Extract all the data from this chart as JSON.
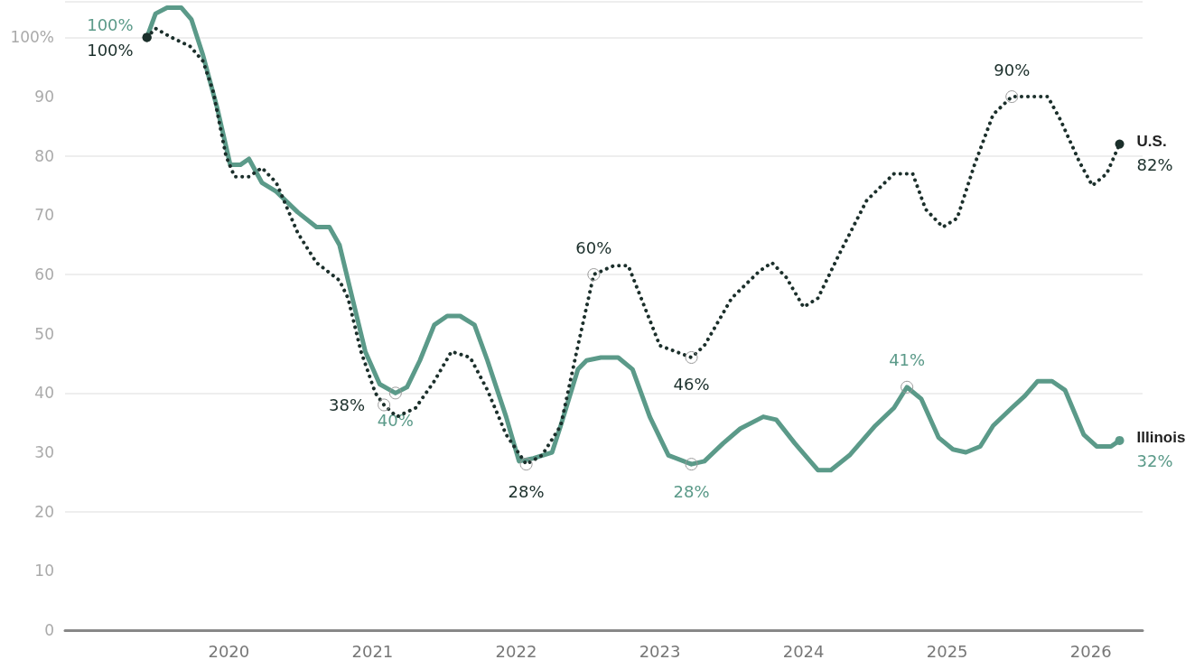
{
  "chart_data": {
    "type": "line",
    "xlim": [
      2018.86,
      2026.36
    ],
    "xticks": [
      2020,
      2021,
      2022,
      2023,
      2024,
      2025,
      2026
    ],
    "ylim": [
      0,
      106
    ],
    "yticks": [
      0,
      10,
      20,
      30,
      40,
      50,
      60,
      70,
      80,
      90,
      {
        "value": 100,
        "label": "100%"
      }
    ],
    "grid": "y",
    "legend": false,
    "series": [
      {
        "name": "U.S.",
        "color": "#1b2f2b",
        "line_style": "dotted",
        "x": [
          2019.43,
          2019.49,
          2019.6,
          2019.73,
          2019.82,
          2019.89,
          2019.98,
          2020.04,
          2020.14,
          2020.23,
          2020.33,
          2020.48,
          2020.61,
          2020.77,
          2020.83,
          2020.92,
          2021.02,
          2021.08,
          2021.17,
          2021.3,
          2021.43,
          2021.55,
          2021.68,
          2021.8,
          2021.93,
          2022.07,
          2022.18,
          2022.31,
          2022.43,
          2022.54,
          2022.68,
          2022.78,
          2022.87,
          2023.0,
          2023.22,
          2023.31,
          2023.5,
          2023.69,
          2023.78,
          2023.88,
          2024.0,
          2024.1,
          2024.25,
          2024.44,
          2024.63,
          2024.76,
          2024.85,
          2024.97,
          2025.07,
          2025.19,
          2025.32,
          2025.45,
          2025.57,
          2025.7,
          2025.79,
          2025.92,
          2026.01,
          2026.11,
          2026.2
        ],
        "values": [
          100,
          101.5,
          100,
          98.5,
          96,
          91,
          80,
          76.5,
          76.5,
          78,
          75.5,
          67,
          62,
          59,
          56,
          47,
          40,
          38,
          36,
          37.5,
          42,
          47,
          46,
          40.5,
          33,
          28,
          29.5,
          34.5,
          48,
          60,
          61.5,
          61.5,
          56,
          48,
          46,
          48,
          56,
          60.5,
          62,
          59.5,
          54.5,
          56,
          63.5,
          72.5,
          77,
          77,
          71,
          68,
          69.5,
          78.5,
          87,
          90,
          90,
          90,
          86,
          79,
          75,
          77,
          82
        ],
        "value_labels": [
          "100%",
          null,
          null,
          null,
          null,
          null,
          null,
          null,
          null,
          null,
          null,
          null,
          null,
          null,
          null,
          null,
          null,
          "38%",
          null,
          null,
          null,
          null,
          null,
          null,
          null,
          "28%",
          null,
          null,
          null,
          "60%",
          null,
          null,
          null,
          null,
          "46%",
          null,
          null,
          null,
          null,
          null,
          null,
          null,
          null,
          null,
          null,
          null,
          null,
          null,
          null,
          null,
          null,
          "90%",
          null,
          null,
          null,
          null,
          null,
          null,
          "82%"
        ]
      },
      {
        "name": "Illinois",
        "color": "#5b9a89",
        "line_style": "solid",
        "x": [
          2019.43,
          2019.49,
          2019.57,
          2019.67,
          2019.74,
          2019.82,
          2019.92,
          2020.01,
          2020.08,
          2020.14,
          2020.23,
          2020.33,
          2020.48,
          2020.61,
          2020.7,
          2020.77,
          2020.86,
          2020.95,
          2021.05,
          2021.16,
          2021.24,
          2021.33,
          2021.43,
          2021.52,
          2021.61,
          2021.71,
          2021.8,
          2021.93,
          2022.02,
          2022.12,
          2022.25,
          2022.31,
          2022.43,
          2022.49,
          2022.59,
          2022.71,
          2022.81,
          2022.93,
          2023.06,
          2023.22,
          2023.31,
          2023.44,
          2023.56,
          2023.72,
          2023.81,
          2023.94,
          2024.1,
          2024.19,
          2024.32,
          2024.5,
          2024.63,
          2024.72,
          2024.82,
          2024.94,
          2025.04,
          2025.13,
          2025.23,
          2025.32,
          2025.45,
          2025.54,
          2025.63,
          2025.73,
          2025.82,
          2025.95,
          2026.04,
          2026.14,
          2026.2
        ],
        "values": [
          100,
          104,
          105,
          105,
          103,
          97,
          88,
          78.5,
          78.5,
          79.5,
          75.5,
          74,
          70.5,
          68,
          68,
          65,
          56,
          47,
          41.5,
          40,
          41,
          45.5,
          51.5,
          53,
          53,
          51.5,
          45.5,
          36,
          28.5,
          29,
          30,
          34.5,
          44,
          45.5,
          46,
          46,
          44,
          36,
          29.5,
          28,
          28.5,
          31.5,
          34,
          36,
          35.5,
          31.5,
          27,
          27,
          29.5,
          34.5,
          37.5,
          41,
          39,
          32.5,
          30.5,
          30,
          31,
          34.5,
          37.5,
          39.5,
          42,
          42,
          40.5,
          33,
          31,
          31,
          32
        ],
        "value_labels": [
          "100%",
          null,
          null,
          null,
          null,
          null,
          null,
          null,
          null,
          null,
          null,
          null,
          null,
          null,
          null,
          null,
          null,
          null,
          null,
          "40%",
          null,
          null,
          null,
          null,
          null,
          null,
          null,
          null,
          null,
          null,
          null,
          null,
          null,
          null,
          null,
          null,
          null,
          null,
          null,
          "28%",
          null,
          null,
          null,
          null,
          null,
          null,
          null,
          null,
          null,
          null,
          null,
          "41%",
          null,
          null,
          null,
          null,
          null,
          null,
          null,
          null,
          null,
          null,
          null,
          null,
          null,
          null,
          "32%"
        ]
      }
    ]
  }
}
